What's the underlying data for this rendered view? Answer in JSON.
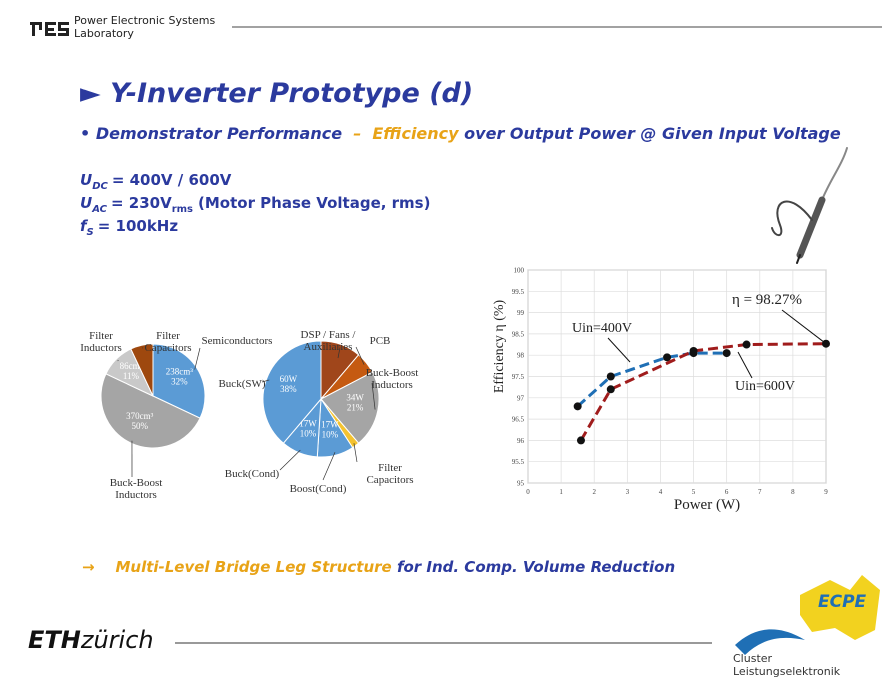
{
  "header": {
    "lab_line1": "Power Electronic Systems",
    "lab_line2": "Laboratory"
  },
  "title": "► Y-Inverter Prototype (d)",
  "subtitle": {
    "bullet": "•",
    "part1": "Demonstrator Performance",
    "dash": "–",
    "highlight": "Efficiency",
    "part2": "over Output Power @ Given Input Voltage"
  },
  "params": [
    {
      "symbol": "U",
      "sub": "DC",
      "value": "= 400V / 600V",
      "value_sub": null,
      "value_tail": null
    },
    {
      "symbol": "U",
      "sub": "AC",
      "value": "= 230V",
      "value_sub": "rms",
      "value_tail": "(Motor Phase Voltage, rms)"
    },
    {
      "symbol": "f",
      "sub": "S",
      "value": "= 100kHz",
      "value_sub": null,
      "value_tail": null
    }
  ],
  "chart_data": [
    {
      "type": "pie",
      "categories": [
        "Semiconductors",
        "Buck-Boost Inductors",
        "Filter Inductors",
        "Filter Capacitors"
      ],
      "values": [
        32,
        50,
        11,
        7
      ],
      "value_labels": [
        "32%",
        "50%",
        "11%",
        null
      ],
      "volume_labels": [
        "238cm³",
        "370cm³",
        "86cm³",
        null
      ],
      "colors": [
        "#5b9bd5",
        "#a5a5a5",
        "#c9c9c9",
        "#9e480e"
      ]
    },
    {
      "type": "pie",
      "categories": [
        "DSP / Fans / Auxiliaries",
        "PCB",
        "Buck-Boost Inductors",
        "Filter Capacitors",
        "Boost(Cond)",
        "Buck(Cond)",
        "Buck(SW)"
      ],
      "values": [
        11,
        6,
        21,
        2,
        10,
        10,
        38
      ],
      "value_labels": [
        null,
        null,
        "21%",
        null,
        "10%",
        "10%",
        "38%"
      ],
      "power_labels": [
        null,
        null,
        "34W",
        null,
        "17W",
        "17W",
        "60W"
      ],
      "colors": [
        "#a0461b",
        "#c55a11",
        "#a5a5a5",
        "#f4c330",
        "#5b9bd5",
        "#5b9bd5",
        "#5b9bd5"
      ]
    },
    {
      "type": "line",
      "xlabel": "Power (W)",
      "ylabel": "Efficiency η (%)",
      "xlim": [
        0,
        9
      ],
      "ylim": [
        95,
        100
      ],
      "xticks": [
        0,
        1,
        2,
        3,
        4,
        5,
        6,
        7,
        8,
        9
      ],
      "yticks": [
        95,
        95.5,
        96,
        96.5,
        97,
        97.5,
        98,
        98.5,
        99,
        99.5,
        100
      ],
      "grid": true,
      "series": [
        {
          "name": "Uin=400V",
          "color": "#1f6fb5",
          "x": [
            1.5,
            2.5,
            4.2,
            5.0,
            6.0
          ],
          "values": [
            96.8,
            97.5,
            97.95,
            98.05,
            98.05
          ]
        },
        {
          "name": "Uin=600V",
          "color": "#a01c1c",
          "x": [
            1.6,
            2.5,
            5.0,
            6.6,
            9.0
          ],
          "values": [
            96.0,
            97.2,
            98.1,
            98.25,
            98.27
          ]
        }
      ],
      "annotation": "η = 98.27%"
    }
  ],
  "conclusion": {
    "arrow": "→",
    "highlight": "Multi-Level Bridge Leg Structure",
    "rest": "for Ind. Comp. Volume Reduction"
  },
  "footer": {
    "eth": "ETH",
    "zurich": "zürich",
    "cluster_line1": "Cluster",
    "cluster_line2": "Leistungselektronik",
    "ecpe": "ECPE"
  }
}
